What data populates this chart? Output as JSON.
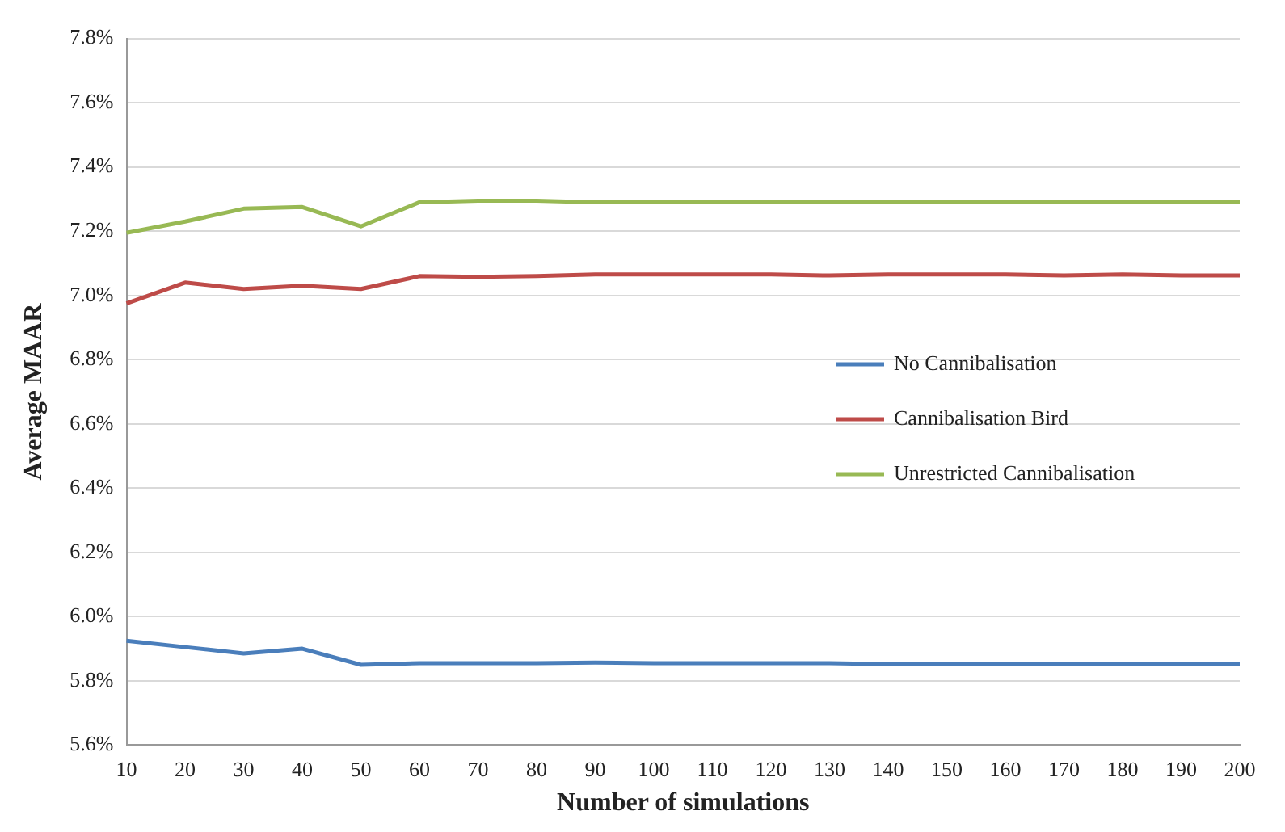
{
  "chart_data": {
    "type": "line",
    "xlabel": "Number of simulations",
    "ylabel": "Average MAAR",
    "categories": [
      "10",
      "20",
      "30",
      "40",
      "50",
      "60",
      "70",
      "80",
      "90",
      "100",
      "110",
      "120",
      "130",
      "140",
      "150",
      "160",
      "170",
      "180",
      "190",
      "200"
    ],
    "series": [
      {
        "name": "No Cannibalisation",
        "color": "#4a7ebb",
        "values": [
          5.925,
          5.905,
          5.885,
          5.9,
          5.85,
          5.855,
          5.855,
          5.855,
          5.857,
          5.855,
          5.855,
          5.855,
          5.855,
          5.852,
          5.852,
          5.852,
          5.852,
          5.852,
          5.852,
          5.852
        ]
      },
      {
        "name": "Cannibalisation Bird",
        "color": "#be4b48",
        "values": [
          6.975,
          7.04,
          7.02,
          7.03,
          7.02,
          7.06,
          7.058,
          7.06,
          7.065,
          7.065,
          7.065,
          7.065,
          7.062,
          7.065,
          7.065,
          7.065,
          7.062,
          7.065,
          7.062,
          7.062
        ]
      },
      {
        "name": "Unrestricted Cannibalisation",
        "color": "#98b954",
        "values": [
          7.195,
          7.23,
          7.27,
          7.275,
          7.215,
          7.29,
          7.295,
          7.295,
          7.29,
          7.29,
          7.29,
          7.292,
          7.29,
          7.29,
          7.29,
          7.29,
          7.29,
          7.29,
          7.29,
          7.29
        ]
      }
    ],
    "ylim": [
      5.6,
      7.8
    ],
    "yticks": [
      {
        "value": 5.6,
        "label": "5.6%"
      },
      {
        "value": 5.8,
        "label": "5.8%"
      },
      {
        "value": 6.0,
        "label": "6.0%"
      },
      {
        "value": 6.2,
        "label": "6.2%"
      },
      {
        "value": 6.4,
        "label": "6.4%"
      },
      {
        "value": 6.6,
        "label": "6.6%"
      },
      {
        "value": 6.8,
        "label": "6.8%"
      },
      {
        "value": 7.0,
        "label": "7.0%"
      },
      {
        "value": 7.2,
        "label": "7.2%"
      },
      {
        "value": 7.4,
        "label": "7.4%"
      },
      {
        "value": 7.6,
        "label": "7.6%"
      },
      {
        "value": 7.8,
        "label": "7.8%"
      }
    ],
    "grid": "y",
    "legend": "right",
    "marker": "none",
    "line_style": "solid"
  }
}
